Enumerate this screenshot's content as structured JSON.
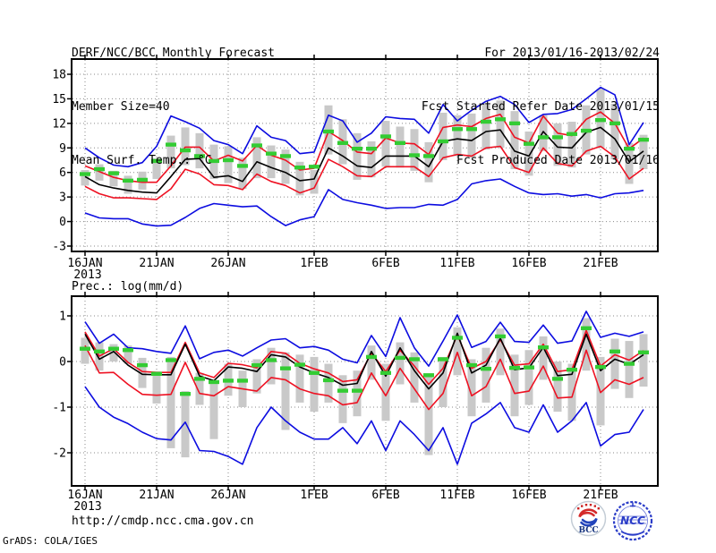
{
  "header": {
    "title": "DERF/NCC/BCC Monthly Forecast",
    "member_size": "Member Size=40",
    "for_range": "For 2013/01/16-2013/02/24",
    "started": "Fcst Started Refer Date 2013/01/15",
    "produced": "Fcst Produced Date 2013/01/16"
  },
  "footer": {
    "url": "http://cmdp.ncc.cma.gov.cn",
    "credit": "GrADS: COLA/IGES"
  },
  "logos": {
    "bcc": "BCC",
    "ncc": "NCC"
  },
  "colors": {
    "max_min": "#0c0ce0",
    "envelope": "#ee1122",
    "mean": "#000000",
    "obs": "#33cc33",
    "spread": "#c9c9c9",
    "grid": "#8a8a8a"
  },
  "chart_data": [
    {
      "type": "line",
      "name": "surface-temperature-forecast",
      "title": "Mean Surf. Temp.: °C",
      "x_tick_labels": [
        "16JAN",
        "21JAN",
        "26JAN",
        "1FEB",
        "6FEB",
        "11FEB",
        "16FEB",
        "21FEB"
      ],
      "x_tick_days": [
        0,
        5,
        10,
        16,
        21,
        26,
        31,
        36
      ],
      "x_year": "2013",
      "n_points": 40,
      "yticks": [
        18,
        15,
        12,
        9,
        6,
        3,
        0,
        -3
      ],
      "ylim": [
        -3.7,
        19.9
      ],
      "grid": true,
      "series": [
        {
          "name": "ensemble-max",
          "color_key": "max_min",
          "values": [
            9.0,
            7.8,
            6.9,
            6.7,
            7.2,
            9.2,
            12.9,
            12.2,
            11.4,
            9.9,
            9.4,
            8.3,
            11.7,
            10.3,
            9.9,
            8.3,
            8.5,
            13.0,
            12.3,
            9.7,
            10.8,
            12.8,
            12.6,
            12.5,
            10.8,
            14.3,
            12.3,
            13.6,
            14.7,
            15.3,
            14.3,
            12.1,
            13.1,
            13.2,
            13.7,
            15.0,
            16.4,
            15.5,
            9.4,
            12.1
          ]
        },
        {
          "name": "upper-envelope",
          "color_key": "envelope",
          "values": [
            6.8,
            6.1,
            5.4,
            5.0,
            4.8,
            4.8,
            6.8,
            9.1,
            9.1,
            7.4,
            8.1,
            7.4,
            9.3,
            8.1,
            7.5,
            6.3,
            6.5,
            11.0,
            9.9,
            8.5,
            8.3,
            10.2,
            9.6,
            9.5,
            8.2,
            11.5,
            11.8,
            11.6,
            12.6,
            13.1,
            10.3,
            9.6,
            12.9,
            10.8,
            10.5,
            12.5,
            13.4,
            12.0,
            8.9,
            10.2
          ]
        },
        {
          "name": "ensemble-mean",
          "color_key": "mean",
          "values": [
            5.5,
            4.5,
            4.1,
            3.8,
            3.6,
            3.5,
            5.5,
            7.6,
            7.7,
            5.4,
            5.6,
            4.9,
            7.3,
            6.6,
            6.0,
            5.0,
            5.2,
            9.0,
            8.0,
            6.8,
            6.6,
            8.0,
            8.0,
            8.0,
            6.7,
            9.8,
            10.1,
            9.9,
            11.0,
            11.2,
            8.6,
            8.0,
            11.0,
            9.1,
            9.0,
            10.9,
            11.5,
            10.1,
            7.3,
            8.6
          ]
        },
        {
          "name": "lower-envelope",
          "color_key": "envelope",
          "values": [
            4.3,
            3.4,
            2.9,
            2.9,
            2.8,
            2.7,
            4.0,
            6.4,
            5.8,
            4.5,
            4.4,
            3.9,
            5.8,
            4.9,
            4.4,
            3.5,
            4.1,
            7.6,
            6.7,
            5.6,
            5.5,
            6.7,
            6.7,
            6.7,
            5.5,
            7.8,
            8.2,
            8.0,
            9.0,
            9.2,
            6.6,
            6.0,
            9.0,
            7.1,
            6.8,
            8.6,
            9.2,
            7.9,
            5.2,
            6.5
          ]
        },
        {
          "name": "ensemble-min",
          "color_key": "max_min",
          "values": [
            1.05,
            0.45,
            0.35,
            0.35,
            -0.3,
            -0.55,
            -0.45,
            0.5,
            1.6,
            2.2,
            2.0,
            1.8,
            1.9,
            0.6,
            -0.5,
            0.2,
            0.6,
            3.9,
            2.7,
            2.3,
            2.0,
            1.6,
            1.7,
            1.7,
            2.1,
            2.0,
            2.7,
            4.6,
            5.0,
            5.2,
            4.3,
            3.5,
            3.3,
            3.4,
            3.1,
            3.3,
            2.9,
            3.4,
            3.5,
            3.8
          ]
        }
      ],
      "obs_dashes": [
        5.8,
        6.4,
        5.9,
        5.0,
        5.1,
        7.4,
        9.4,
        8.7,
        8.0,
        7.4,
        7.5,
        6.8,
        9.3,
        8.3,
        8.0,
        6.6,
        6.7,
        11.0,
        9.6,
        8.9,
        8.9,
        10.4,
        9.6,
        8.1,
        8.0,
        9.8,
        11.3,
        11.3,
        12.2,
        12.5,
        12.0,
        9.5,
        10.3,
        10.3,
        10.7,
        11.1,
        12.4,
        12.0,
        8.9,
        10.0
      ],
      "spread_bars": [
        [
          4.4,
          6.3
        ],
        [
          5.0,
          7.0
        ],
        [
          4.3,
          6.2
        ],
        [
          3.4,
          5.6
        ],
        [
          3.9,
          6.1
        ],
        [
          5.2,
          7.7
        ],
        [
          6.5,
          10.5
        ],
        [
          6.9,
          11.5
        ],
        [
          6.5,
          10.8
        ],
        [
          5.2,
          9.4
        ],
        [
          4.7,
          9.2
        ],
        [
          4.0,
          7.8
        ],
        [
          5.3,
          10.3
        ],
        [
          5.3,
          9.3
        ],
        [
          4.6,
          8.8
        ],
        [
          3.2,
          7.3
        ],
        [
          3.4,
          6.3
        ],
        [
          8.2,
          14.2
        ],
        [
          7.0,
          12.5
        ],
        [
          5.1,
          10.8
        ],
        [
          5.4,
          9.8
        ],
        [
          6.7,
          12.3
        ],
        [
          6.6,
          11.6
        ],
        [
          6.2,
          11.3
        ],
        [
          4.8,
          9.7
        ],
        [
          7.5,
          13.3
        ],
        [
          8.0,
          13.0
        ],
        [
          7.8,
          13.2
        ],
        [
          8.8,
          14.5
        ],
        [
          9.0,
          14.8
        ],
        [
          6.4,
          13.5
        ],
        [
          5.6,
          11.0
        ],
        [
          8.6,
          13.0
        ],
        [
          6.8,
          12.0
        ],
        [
          6.6,
          12.2
        ],
        [
          8.2,
          14.2
        ],
        [
          9.0,
          16.2
        ],
        [
          7.6,
          14.4
        ],
        [
          4.6,
          9.6
        ],
        [
          6.4,
          10.6
        ]
      ]
    },
    {
      "type": "line",
      "name": "precipitation-forecast",
      "title": "Prec.: log(mm/d)",
      "x_tick_labels": [
        "16JAN",
        "21JAN",
        "26JAN",
        "1FEB",
        "6FEB",
        "11FEB",
        "16FEB",
        "21FEB"
      ],
      "x_tick_days": [
        0,
        5,
        10,
        16,
        21,
        26,
        31,
        36
      ],
      "x_year": "2013",
      "n_points": 40,
      "yticks": [
        1,
        0,
        -1,
        -2
      ],
      "ylim": [
        -2.75,
        1.45
      ],
      "grid": true,
      "series": [
        {
          "name": "ensemble-max",
          "color_key": "max_min",
          "values": [
            0.87,
            0.4,
            0.6,
            0.3,
            0.28,
            0.22,
            0.18,
            0.78,
            0.06,
            0.2,
            0.25,
            0.12,
            0.3,
            0.47,
            0.5,
            0.3,
            0.33,
            0.25,
            0.05,
            -0.03,
            0.57,
            0.11,
            0.96,
            0.3,
            -0.1,
            0.45,
            1.02,
            0.31,
            0.44,
            0.86,
            0.44,
            0.42,
            0.8,
            0.4,
            0.45,
            1.1,
            0.53,
            0.62,
            0.55,
            0.65
          ]
        },
        {
          "name": "upper-envelope",
          "color_key": "envelope",
          "values": [
            0.65,
            0.12,
            0.28,
            -0.02,
            -0.22,
            -0.24,
            -0.24,
            0.42,
            -0.25,
            -0.35,
            -0.04,
            -0.07,
            -0.14,
            0.22,
            0.18,
            -0.04,
            -0.16,
            -0.25,
            -0.44,
            -0.4,
            0.18,
            -0.22,
            0.25,
            -0.1,
            -0.5,
            -0.15,
            0.58,
            -0.15,
            0.0,
            0.48,
            -0.08,
            -0.05,
            0.38,
            -0.22,
            -0.18,
            0.68,
            -0.1,
            0.15,
            0.03,
            0.24
          ]
        },
        {
          "name": "ensemble-mean",
          "color_key": "mean",
          "values": [
            0.6,
            0.05,
            0.22,
            -0.08,
            -0.28,
            -0.29,
            -0.29,
            0.38,
            -0.32,
            -0.42,
            -0.12,
            -0.15,
            -0.22,
            0.15,
            0.1,
            -0.12,
            -0.25,
            -0.35,
            -0.52,
            -0.48,
            0.22,
            -0.32,
            0.3,
            -0.2,
            -0.6,
            -0.25,
            0.62,
            -0.25,
            -0.08,
            0.51,
            -0.18,
            -0.14,
            0.31,
            -0.31,
            -0.28,
            0.6,
            -0.2,
            0.05,
            -0.06,
            0.15
          ]
        },
        {
          "name": "lower-envelope",
          "color_key": "envelope",
          "values": [
            0.35,
            -0.25,
            -0.24,
            -0.5,
            -0.72,
            -0.74,
            -0.72,
            -0.02,
            -0.7,
            -0.75,
            -0.55,
            -0.6,
            -0.65,
            -0.35,
            -0.4,
            -0.6,
            -0.7,
            -0.75,
            -0.95,
            -0.9,
            -0.25,
            -0.75,
            -0.15,
            -0.6,
            -1.05,
            -0.7,
            0.2,
            -0.75,
            -0.55,
            0.05,
            -0.7,
            -0.65,
            -0.1,
            -0.8,
            -0.78,
            0.25,
            -0.68,
            -0.4,
            -0.5,
            -0.35
          ]
        },
        {
          "name": "ensemble-min",
          "color_key": "max_min",
          "values": [
            -0.55,
            -1.0,
            -1.22,
            -1.36,
            -1.55,
            -1.69,
            -1.72,
            -1.33,
            -1.95,
            -1.97,
            -2.08,
            -2.25,
            -1.45,
            -1.0,
            -1.3,
            -1.55,
            -1.7,
            -1.7,
            -1.45,
            -1.8,
            -1.3,
            -1.95,
            -1.3,
            -1.6,
            -1.95,
            -1.45,
            -2.25,
            -1.35,
            -1.15,
            -0.9,
            -1.45,
            -1.55,
            -0.95,
            -1.55,
            -1.3,
            -0.9,
            -1.85,
            -1.6,
            -1.55,
            -1.05
          ]
        }
      ],
      "obs_dashes": [
        0.28,
        0.22,
        0.28,
        0.25,
        -0.08,
        -0.27,
        0.03,
        -0.71,
        -0.38,
        -0.45,
        -0.42,
        -0.42,
        -0.08,
        0.03,
        -0.15,
        -0.07,
        -0.25,
        -0.41,
        -0.64,
        -0.64,
        0.1,
        -0.25,
        0.08,
        0.05,
        -0.3,
        0.05,
        0.52,
        -0.08,
        -0.16,
        0.55,
        -0.14,
        -0.13,
        0.31,
        -0.38,
        -0.18,
        0.73,
        -0.12,
        0.22,
        -0.05,
        0.2
      ],
      "spread_bars": [
        [
          -0.05,
          0.52
        ],
        [
          -0.2,
          0.42
        ],
        [
          0.0,
          0.38
        ],
        [
          -0.05,
          0.35
        ],
        [
          -0.58,
          0.08
        ],
        [
          -0.92,
          -0.22
        ],
        [
          -1.9,
          0.1
        ],
        [
          -2.1,
          -0.65
        ],
        [
          -0.95,
          -0.25
        ],
        [
          -1.7,
          -0.45
        ],
        [
          -0.75,
          -0.05
        ],
        [
          -1.0,
          -0.2
        ],
        [
          -0.7,
          0.05
        ],
        [
          -0.5,
          0.3
        ],
        [
          -1.5,
          0.2
        ],
        [
          -0.9,
          0.15
        ],
        [
          -1.1,
          0.1
        ],
        [
          -0.9,
          -0.05
        ],
        [
          -1.35,
          -0.3
        ],
        [
          -1.2,
          -0.2
        ],
        [
          -0.4,
          0.35
        ],
        [
          -1.3,
          -0.05
        ],
        [
          -0.5,
          0.42
        ],
        [
          -0.9,
          0.2
        ],
        [
          -2.05,
          -0.3
        ],
        [
          -1.0,
          0.1
        ],
        [
          -0.3,
          0.75
        ],
        [
          -1.2,
          0.05
        ],
        [
          -0.9,
          0.3
        ],
        [
          -0.3,
          0.72
        ],
        [
          -1.2,
          0.15
        ],
        [
          -0.95,
          0.25
        ],
        [
          -0.4,
          0.55
        ],
        [
          -1.1,
          0.0
        ],
        [
          -1.3,
          -0.05
        ],
        [
          -0.2,
          0.95
        ],
        [
          -1.4,
          0.1
        ],
        [
          -0.6,
          0.5
        ],
        [
          -0.8,
          0.45
        ],
        [
          -0.55,
          0.6
        ]
      ]
    }
  ]
}
